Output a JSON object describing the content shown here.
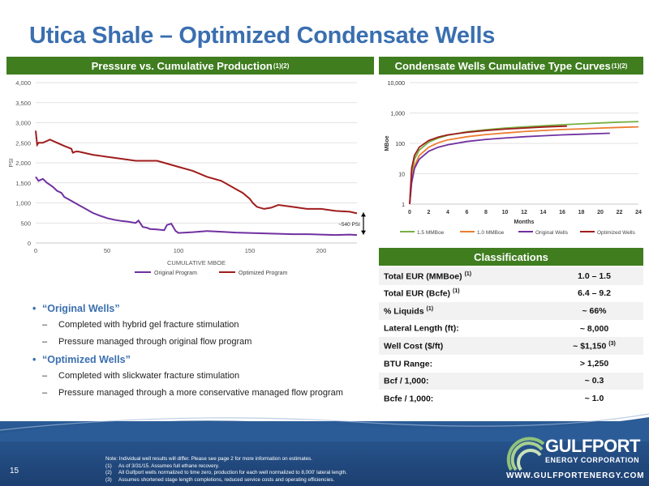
{
  "title": "Utica Shale – Optimized Condensate Wells",
  "left_panel": {
    "header": "Pressure vs. Cumulative Production",
    "header_sup": "(1)(2)"
  },
  "right_panel": {
    "header": "Condensate Wells Cumulative Type Curves ",
    "header_sup": "(1)(2)"
  },
  "classifications": {
    "header": "Classifications",
    "rows": [
      {
        "label": "Total EUR (MMBoe)",
        "sup": "(1)",
        "value": "1.0 – 1.5"
      },
      {
        "label": "Total EUR (Bcfe)",
        "sup": "(1)",
        "value": "6.4 – 9.2"
      },
      {
        "label": "% Liquids ",
        "sup": "(1)",
        "value": "~ 66%"
      },
      {
        "label": "Lateral Length (ft):",
        "sup": "",
        "value": "~ 8,000"
      },
      {
        "label": "Well Cost ($/ft)",
        "sup": "",
        "value": "~ $1,150 ",
        "value_sup": "(3)"
      },
      {
        "label": "BTU Range:",
        "sup": "",
        "value": "> 1,250"
      },
      {
        "label": "Bcf / 1,000:",
        "sup": "",
        "value": "~ 0.3"
      },
      {
        "label": "Bcfe / 1,000:",
        "sup": "",
        "value": "~ 1.0"
      }
    ]
  },
  "bullets": {
    "original_title": "“Original Wells”",
    "original_items": [
      "Completed with hybrid gel fracture stimulation",
      "Pressure managed through original flow program"
    ],
    "optimized_title": "“Optimized Wells”",
    "optimized_items": [
      "Completed with slickwater fracture stimulation",
      "Pressure managed through a more conservative managed flow program"
    ]
  },
  "footer": {
    "page_number": "15",
    "notes_intro": "Note: Individual well results will differ. Please see page 2 for more information on estimates.",
    "notes": [
      {
        "num": "(1)",
        "text": "As of 3/31/15. Assumes full ethane recovery."
      },
      {
        "num": "(2)",
        "text": "All Gulfport wells normalized to time zero, production for each well normalized to 8,000' lateral length."
      },
      {
        "num": "(3)",
        "text": "Assumes shortened stage length completions, reduced service costs and operating efficiencies."
      }
    ],
    "logo_name": "GULFPORT",
    "logo_sub": "ENERGY CORPORATION",
    "logo_url": "WWW.GULFPORTENERGY.COM"
  },
  "colors": {
    "title_blue": "#3a6fb0",
    "header_green": "#3f7d1f",
    "original_purple": "#7030a0",
    "optimized_red": "#a01c1c",
    "mm15_green": "#77b041",
    "mm10_orange": "#ed7d31",
    "footer_blue": "#2b5c97"
  },
  "chart_data": [
    {
      "type": "line",
      "xlabel": "CUMULATIVE MBOE",
      "ylabel": "PSI",
      "xlim": [
        0,
        225
      ],
      "ylim": [
        0,
        4000
      ],
      "x_ticks": [
        0,
        50,
        100,
        150,
        200
      ],
      "y_ticks": [
        0,
        500,
        1000,
        1500,
        2000,
        2500,
        3000,
        3500,
        4000
      ],
      "annotation": "~540 PSI",
      "legend_position": "bottom",
      "grid": true,
      "series": [
        {
          "name": "Original Program",
          "color": "#7030a0",
          "x": [
            0,
            2,
            5,
            8,
            10,
            12,
            15,
            18,
            20,
            25,
            30,
            35,
            40,
            45,
            50,
            55,
            60,
            65,
            70,
            72,
            75,
            78,
            80,
            85,
            90,
            92,
            95,
            98,
            100,
            105,
            110,
            120,
            130,
            140,
            150,
            160,
            170,
            180,
            190,
            200,
            210,
            220,
            225
          ],
          "y": [
            1650,
            1550,
            1600,
            1500,
            1450,
            1400,
            1300,
            1250,
            1150,
            1050,
            950,
            850,
            750,
            680,
            620,
            580,
            550,
            530,
            500,
            560,
            400,
            380,
            350,
            340,
            320,
            450,
            480,
            300,
            250,
            260,
            270,
            300,
            280,
            260,
            250,
            240,
            230,
            220,
            220,
            210,
            200,
            210,
            200
          ]
        },
        {
          "name": "Optimized Program",
          "color": "#a01c1c",
          "x": [
            0,
            1,
            2,
            5,
            10,
            15,
            20,
            25,
            26,
            28,
            30,
            40,
            50,
            60,
            70,
            80,
            85,
            90,
            100,
            110,
            120,
            130,
            140,
            145,
            150,
            152,
            155,
            160,
            165,
            170,
            180,
            190,
            200,
            210,
            220,
            225
          ],
          "y": [
            2800,
            2450,
            2500,
            2500,
            2580,
            2500,
            2420,
            2350,
            2250,
            2280,
            2280,
            2200,
            2150,
            2100,
            2050,
            2050,
            2050,
            2000,
            1900,
            1800,
            1650,
            1550,
            1350,
            1250,
            1100,
            1000,
            900,
            850,
            880,
            950,
            900,
            850,
            850,
            800,
            780,
            740
          ]
        }
      ]
    },
    {
      "type": "line",
      "xlabel": "Months",
      "ylabel": "MBoe",
      "y_scale": "log",
      "xlim": [
        0,
        24
      ],
      "ylim": [
        1,
        10000
      ],
      "x_ticks": [
        0,
        2,
        4,
        6,
        8,
        10,
        12,
        14,
        16,
        18,
        20,
        22,
        24
      ],
      "y_ticks": [
        1,
        10,
        100,
        1000,
        10000
      ],
      "legend_position": "bottom",
      "grid": true,
      "series": [
        {
          "name": "1.5 MMBoe",
          "color": "#77b041",
          "x": [
            0,
            0.2,
            0.5,
            1,
            2,
            3,
            4,
            6,
            8,
            10,
            12,
            14,
            16,
            18,
            20,
            22,
            24
          ],
          "y": [
            1,
            10,
            30,
            60,
            110,
            150,
            185,
            240,
            280,
            320,
            350,
            380,
            410,
            440,
            470,
            500,
            520
          ]
        },
        {
          "name": "1.0 MMBoe",
          "color": "#ed7d31",
          "x": [
            0,
            0.2,
            0.5,
            1,
            2,
            3,
            4,
            6,
            8,
            10,
            12,
            14,
            16,
            18,
            20,
            22,
            24
          ],
          "y": [
            1,
            6,
            18,
            40,
            75,
            105,
            130,
            165,
            195,
            220,
            245,
            265,
            285,
            300,
            320,
            335,
            350
          ]
        },
        {
          "name": "Original Wells",
          "color": "#7030a0",
          "x": [
            0,
            0.2,
            0.5,
            1,
            2,
            3,
            4,
            6,
            8,
            10,
            12,
            14,
            16,
            18,
            20,
            21
          ],
          "y": [
            1,
            5,
            15,
            30,
            55,
            75,
            90,
            115,
            135,
            150,
            165,
            178,
            190,
            200,
            210,
            215
          ]
        },
        {
          "name": "Optimized Wells",
          "color": "#a01c1c",
          "x": [
            0,
            0.2,
            0.5,
            1,
            2,
            3,
            4,
            6,
            8,
            10,
            12,
            14,
            16.5
          ],
          "y": [
            1,
            15,
            40,
            75,
            125,
            160,
            190,
            230,
            265,
            295,
            320,
            345,
            370
          ]
        }
      ]
    }
  ]
}
